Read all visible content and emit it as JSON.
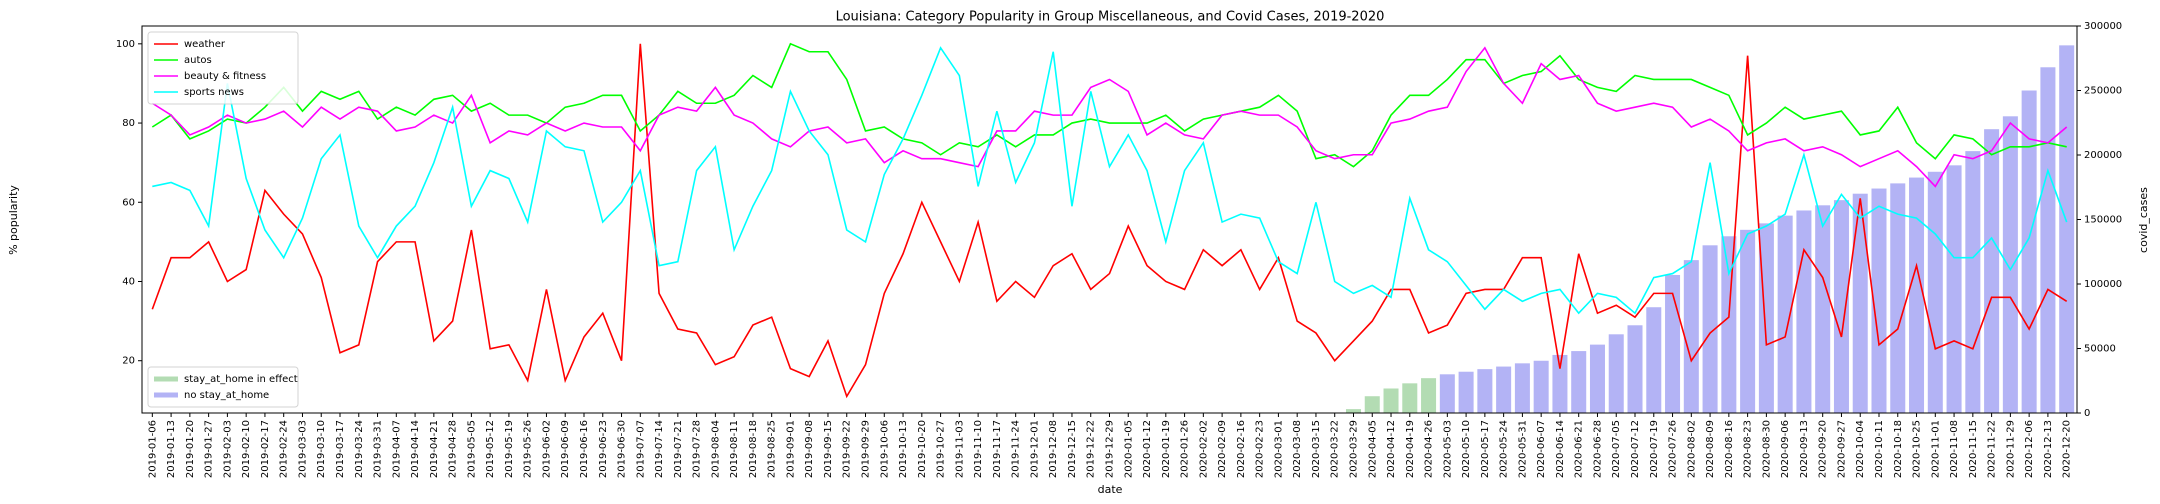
{
  "chart_data": {
    "type": "line",
    "title": "Louisiana: Category Popularity in Group Miscellaneous, and Covid Cases, 2019-2020",
    "x_label": "date",
    "y_label": "% popularity",
    "y2_label": "covid_cases",
    "categories": [
      "2019-01-06",
      "2019-01-13",
      "2019-01-20",
      "2019-01-27",
      "2019-02-03",
      "2019-02-10",
      "2019-02-17",
      "2019-02-24",
      "2019-03-03",
      "2019-03-10",
      "2019-03-17",
      "2019-03-24",
      "2019-03-31",
      "2019-04-07",
      "2019-04-14",
      "2019-04-21",
      "2019-04-28",
      "2019-05-05",
      "2019-05-12",
      "2019-05-19",
      "2019-05-26",
      "2019-06-02",
      "2019-06-09",
      "2019-06-16",
      "2019-06-23",
      "2019-06-30",
      "2019-07-07",
      "2019-07-14",
      "2019-07-21",
      "2019-07-28",
      "2019-08-04",
      "2019-08-11",
      "2019-08-18",
      "2019-08-25",
      "2019-09-01",
      "2019-09-08",
      "2019-09-15",
      "2019-09-22",
      "2019-09-29",
      "2019-10-06",
      "2019-10-13",
      "2019-10-20",
      "2019-10-27",
      "2019-11-03",
      "2019-11-10",
      "2019-11-17",
      "2019-11-24",
      "2019-12-01",
      "2019-12-08",
      "2019-12-15",
      "2019-12-22",
      "2019-12-29",
      "2020-01-05",
      "2020-01-12",
      "2020-01-19",
      "2020-01-26",
      "2020-02-02",
      "2020-02-09",
      "2020-02-16",
      "2020-02-23",
      "2020-03-01",
      "2020-03-08",
      "2020-03-15",
      "2020-03-22",
      "2020-03-29",
      "2020-04-05",
      "2020-04-12",
      "2020-04-19",
      "2020-04-26",
      "2020-05-03",
      "2020-05-10",
      "2020-05-17",
      "2020-05-24",
      "2020-05-31",
      "2020-06-07",
      "2020-06-14",
      "2020-06-21",
      "2020-06-28",
      "2020-07-05",
      "2020-07-12",
      "2020-07-19",
      "2020-07-26",
      "2020-08-02",
      "2020-08-09",
      "2020-08-16",
      "2020-08-23",
      "2020-08-30",
      "2020-09-06",
      "2020-09-13",
      "2020-09-20",
      "2020-09-27",
      "2020-10-04",
      "2020-10-11",
      "2020-10-18",
      "2020-10-25",
      "2020-11-01",
      "2020-11-08",
      "2020-11-15",
      "2020-11-22",
      "2020-11-29",
      "2020-12-06",
      "2020-12-13",
      "2020-12-20"
    ],
    "series": [
      {
        "name": "weather",
        "color": "#ff0000",
        "values": [
          33,
          46,
          46,
          50,
          40,
          43,
          63,
          57,
          52,
          41,
          22,
          24,
          45,
          50,
          50,
          25,
          30,
          53,
          23,
          24,
          15,
          38,
          15,
          26,
          32,
          20,
          100,
          37,
          28,
          27,
          19,
          21,
          29,
          31,
          18,
          16,
          25,
          11,
          19,
          37,
          47,
          60,
          50,
          40,
          55,
          35,
          40,
          36,
          44,
          47,
          38,
          42,
          54,
          44,
          40,
          38,
          48,
          44,
          48,
          38,
          46,
          30,
          27,
          20,
          25,
          30,
          38,
          38,
          27,
          29,
          37,
          38,
          38,
          46,
          46,
          18,
          47,
          32,
          34,
          31,
          37,
          37,
          20,
          27,
          31,
          97,
          24,
          26,
          48,
          41,
          26,
          61,
          24,
          28,
          44,
          23,
          25,
          23,
          36,
          36,
          28,
          38,
          35
        ]
      },
      {
        "name": "autos",
        "color": "#00ff00",
        "values": [
          79,
          82,
          76,
          78,
          81,
          80,
          84,
          89,
          83,
          88,
          86,
          88,
          81,
          84,
          82,
          86,
          87,
          83,
          85,
          82,
          82,
          80,
          84,
          85,
          87,
          87,
          78,
          82,
          88,
          85,
          85,
          87,
          92,
          89,
          100,
          98,
          98,
          91,
          78,
          79,
          76,
          75,
          72,
          75,
          74,
          77,
          74,
          77,
          77,
          80,
          81,
          80,
          80,
          80,
          82,
          78,
          81,
          82,
          83,
          84,
          87,
          83,
          71,
          72,
          69,
          73,
          82,
          87,
          87,
          91,
          96,
          96,
          90,
          92,
          93,
          97,
          91,
          89,
          88,
          92,
          91,
          91,
          91,
          89,
          87,
          77,
          80,
          84,
          81,
          82,
          83,
          77,
          78,
          84,
          75,
          71,
          77,
          76,
          72,
          74,
          74,
          75,
          74
        ]
      },
      {
        "name": "beauty & fitness",
        "color": "#ff00ff",
        "values": [
          85,
          82,
          77,
          79,
          82,
          80,
          81,
          83,
          79,
          84,
          81,
          84,
          83,
          78,
          79,
          82,
          80,
          87,
          75,
          78,
          77,
          80,
          78,
          80,
          79,
          79,
          73,
          82,
          84,
          83,
          89,
          82,
          80,
          76,
          74,
          78,
          79,
          75,
          76,
          70,
          73,
          71,
          71,
          70,
          69,
          78,
          78,
          83,
          82,
          82,
          89,
          91,
          88,
          77,
          80,
          77,
          76,
          82,
          83,
          82,
          82,
          79,
          73,
          71,
          72,
          72,
          80,
          81,
          83,
          84,
          93,
          99,
          90,
          85,
          95,
          91,
          92,
          85,
          83,
          84,
          85,
          84,
          79,
          81,
          78,
          73,
          75,
          76,
          73,
          74,
          72,
          69,
          71,
          73,
          69,
          64,
          72,
          71,
          73,
          80,
          76,
          75,
          79
        ]
      },
      {
        "name": "sports news",
        "color": "#00ffff",
        "values": [
          64,
          65,
          63,
          54,
          90,
          66,
          53,
          46,
          56,
          71,
          77,
          54,
          46,
          54,
          59,
          70,
          84,
          59,
          68,
          66,
          55,
          78,
          74,
          73,
          55,
          60,
          68,
          44,
          45,
          68,
          74,
          48,
          59,
          68,
          88,
          78,
          72,
          53,
          50,
          67,
          76,
          87,
          99,
          92,
          64,
          83,
          65,
          75,
          98,
          59,
          88,
          69,
          77,
          68,
          50,
          68,
          75,
          55,
          57,
          56,
          45,
          42,
          60,
          40,
          37,
          39,
          36,
          61,
          48,
          45,
          39,
          33,
          38,
          35,
          37,
          38,
          32,
          37,
          36,
          32,
          41,
          42,
          45,
          70,
          42,
          52,
          54,
          57,
          72,
          54,
          62,
          56,
          59,
          57,
          56,
          52,
          46,
          46,
          51,
          43,
          51,
          68,
          55
        ]
      },
      {
        "name": "stay_at_home in effect",
        "type": "bar",
        "axis": "y2",
        "color": "#b3dcb3",
        "values": [
          null,
          null,
          null,
          null,
          null,
          null,
          null,
          null,
          null,
          null,
          null,
          null,
          null,
          null,
          null,
          null,
          null,
          null,
          null,
          null,
          null,
          null,
          null,
          null,
          null,
          null,
          null,
          null,
          null,
          null,
          null,
          null,
          null,
          null,
          null,
          null,
          null,
          null,
          null,
          null,
          null,
          null,
          null,
          null,
          null,
          null,
          null,
          null,
          null,
          null,
          null,
          null,
          null,
          null,
          null,
          null,
          null,
          null,
          null,
          null,
          null,
          null,
          null,
          null,
          3000,
          13000,
          19000,
          23000,
          27000,
          null,
          null,
          null,
          null,
          null,
          null,
          null,
          null,
          null,
          null,
          null,
          null,
          null,
          null,
          null,
          null,
          null,
          null,
          null,
          null,
          null,
          null,
          null,
          null,
          null,
          null,
          null,
          null,
          null,
          null,
          null,
          null,
          null,
          null
        ]
      },
      {
        "name": "no stay_at_home",
        "type": "bar",
        "axis": "y2",
        "color": "#b3b3f5",
        "values": [
          null,
          null,
          null,
          null,
          null,
          null,
          null,
          null,
          null,
          null,
          null,
          null,
          null,
          null,
          null,
          null,
          null,
          null,
          null,
          null,
          null,
          null,
          null,
          null,
          null,
          null,
          null,
          null,
          null,
          null,
          null,
          null,
          null,
          null,
          null,
          null,
          null,
          null,
          null,
          null,
          null,
          null,
          null,
          null,
          null,
          null,
          null,
          null,
          null,
          null,
          null,
          null,
          null,
          null,
          null,
          null,
          null,
          null,
          null,
          null,
          null,
          null,
          null,
          null,
          null,
          null,
          null,
          null,
          null,
          30000,
          32000,
          34000,
          36000,
          38500,
          40500,
          45000,
          48000,
          53000,
          61000,
          68000,
          82000,
          107000,
          118500,
          130000,
          137000,
          142000,
          147000,
          153000,
          157000,
          161000,
          165000,
          170000,
          174000,
          178000,
          182500,
          187000,
          192000,
          203000,
          220000,
          230000,
          250000,
          268000,
          285000
        ]
      }
    ],
    "ylim": [
      6.8,
      104.5
    ],
    "yticks": [
      20,
      40,
      60,
      80,
      100
    ],
    "y2lim": [
      0,
      300000
    ],
    "y2ticks": [
      0,
      50000,
      100000,
      150000,
      200000,
      250000,
      300000
    ],
    "legend": "upper left",
    "y2_legend": "lower left"
  }
}
